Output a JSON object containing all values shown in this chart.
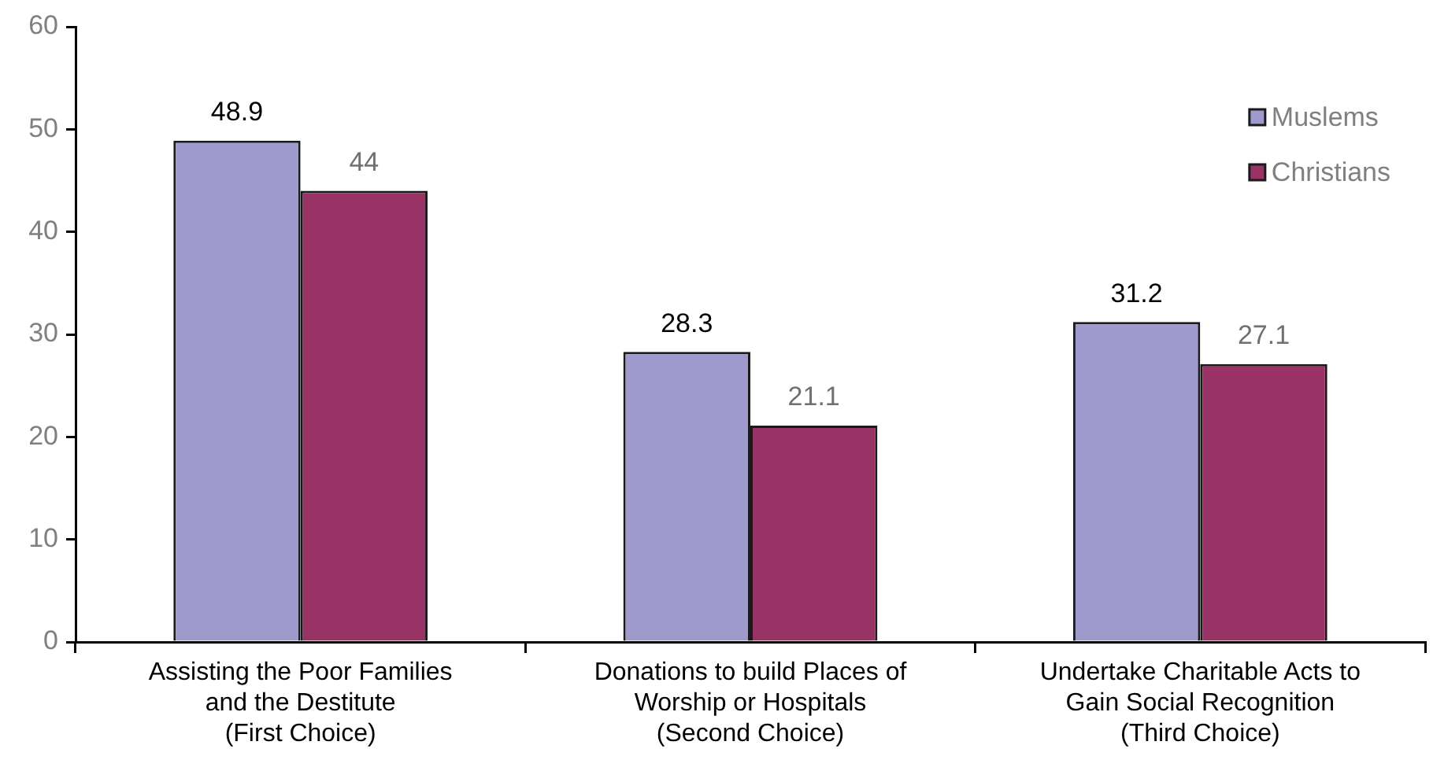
{
  "chart_data": {
    "type": "bar",
    "categories": [
      "Assisting the Poor Families\nand the Destitute\n(First Choice)",
      "Donations to build Places of\nWorship or Hospitals\n(Second Choice)",
      "Undertake Charitable Acts to\nGain Social Recognition\n(Third Choice)"
    ],
    "series": [
      {
        "name": "Muslems",
        "color": "#9e9acb",
        "values": [
          48.9,
          28.3,
          31.2
        ]
      },
      {
        "name": "Christians",
        "color": "#993366",
        "values": [
          44,
          21.1,
          27.1
        ]
      }
    ],
    "ylim": [
      0,
      60
    ],
    "yticks": [
      0,
      10,
      20,
      30,
      40,
      50,
      60
    ],
    "grid": false,
    "legend": "top right",
    "data_labels": true
  }
}
